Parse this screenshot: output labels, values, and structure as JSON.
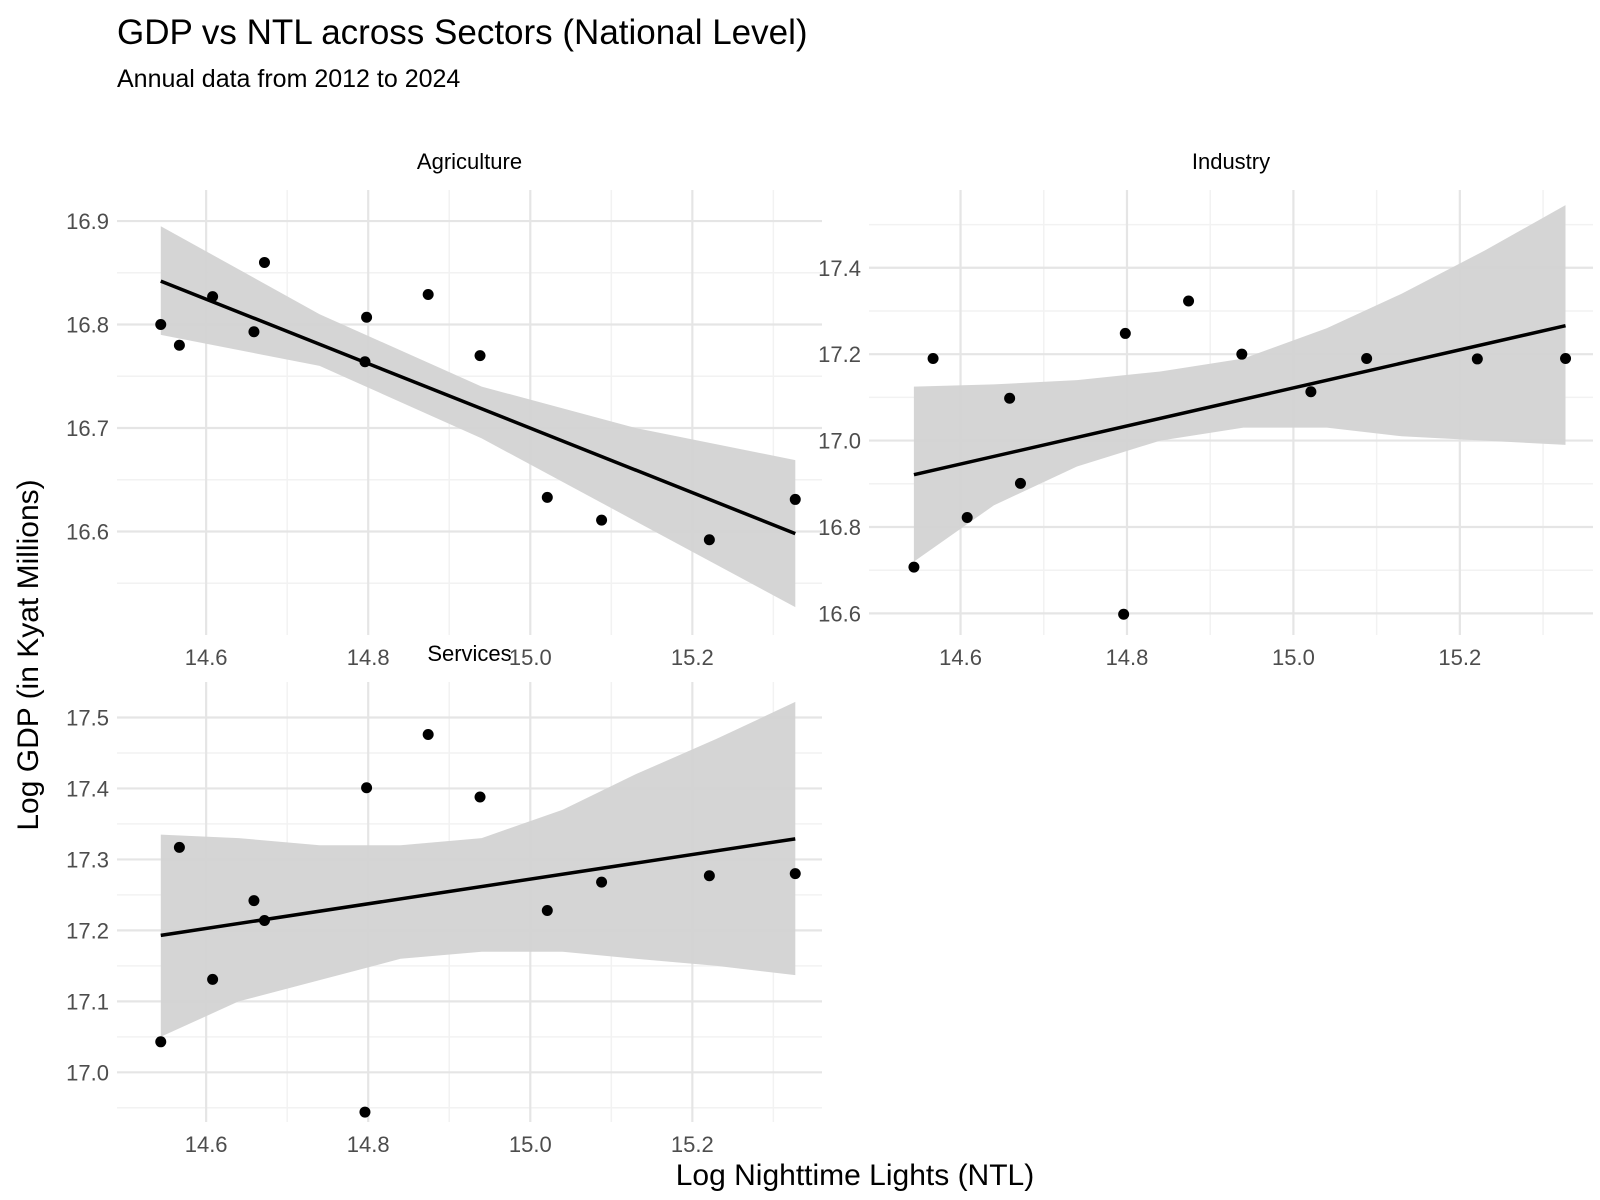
{
  "chart_data": {
    "type": "scatter",
    "title": "GDP vs NTL across Sectors (National Level)",
    "subtitle": "Annual data from 2012 to 2024",
    "xlabel": "Log Nighttime Lights (NTL)",
    "ylabel": "Log GDP (in Kyat Millions)",
    "grid": true,
    "colors": {
      "point": "#000000",
      "line": "#000000",
      "band": "#d3d3d3",
      "grid_major": "#e5e5e5",
      "grid_minor": "#f2f2f2"
    },
    "panels": [
      {
        "name": "Agriculture",
        "xlim": [
          14.49,
          15.36
        ],
        "ylim": [
          16.5,
          16.93
        ],
        "xticks": [
          14.6,
          14.8,
          15.0,
          15.2
        ],
        "xtick_labels": [
          "14.6",
          "14.8",
          "15.0",
          "15.2"
        ],
        "yticks": [
          16.6,
          16.7,
          16.8,
          16.9
        ],
        "ytick_labels": [
          "16.6",
          "16.7",
          "16.8",
          "16.9"
        ],
        "x": [
          14.544,
          14.567,
          14.608,
          14.659,
          14.672,
          14.798,
          14.796,
          14.874,
          14.938,
          15.021,
          15.088,
          15.221,
          15.327
        ],
        "y": [
          16.8,
          16.78,
          16.827,
          16.793,
          16.86,
          16.807,
          16.764,
          16.829,
          16.77,
          16.633,
          16.611,
          16.592,
          16.631
        ],
        "fit": {
          "x": [
            14.544,
            15.327
          ],
          "y": [
            16.842,
            16.598
          ]
        },
        "ci": {
          "x": [
            14.544,
            14.74,
            14.94,
            15.13,
            15.327
          ],
          "lower": [
            16.79,
            16.76,
            16.69,
            16.61,
            16.527
          ],
          "upper": [
            16.895,
            16.81,
            16.74,
            16.7,
            16.669
          ]
        }
      },
      {
        "name": "Industry",
        "xlim": [
          14.49,
          15.36
        ],
        "ylim": [
          16.55,
          17.58
        ],
        "xticks": [
          14.6,
          14.8,
          15.0,
          15.2
        ],
        "xtick_labels": [
          "14.6",
          "14.8",
          "15.0",
          "15.2"
        ],
        "yticks": [
          16.6,
          16.8,
          17.0,
          17.2,
          17.4
        ],
        "ytick_labels": [
          "16.6",
          "16.8",
          "17.0",
          "17.2",
          "17.4"
        ],
        "x": [
          14.544,
          14.567,
          14.608,
          14.659,
          14.672,
          14.798,
          14.796,
          14.874,
          14.938,
          15.021,
          15.088,
          15.221,
          15.327
        ],
        "y": [
          16.707,
          17.19,
          16.822,
          17.098,
          16.901,
          17.248,
          16.598,
          17.323,
          17.2,
          17.113,
          17.19,
          17.189,
          17.19
        ],
        "fit": {
          "x": [
            14.544,
            15.327
          ],
          "y": [
            16.921,
            17.266
          ]
        },
        "ci": {
          "x": [
            14.544,
            14.64,
            14.74,
            14.84,
            14.94,
            15.04,
            15.13,
            15.23,
            15.327
          ],
          "lower": [
            16.72,
            16.85,
            16.94,
            17.0,
            17.03,
            17.03,
            17.01,
            17.0,
            16.99
          ],
          "upper": [
            17.125,
            17.13,
            17.14,
            17.16,
            17.19,
            17.26,
            17.34,
            17.44,
            17.545
          ]
        }
      },
      {
        "name": "Services",
        "xlim": [
          14.49,
          15.36
        ],
        "ylim": [
          16.93,
          17.55
        ],
        "xticks": [
          14.6,
          14.8,
          15.0,
          15.2
        ],
        "xtick_labels": [
          "14.6",
          "14.8",
          "15.0",
          "15.2"
        ],
        "yticks": [
          17.0,
          17.1,
          17.2,
          17.3,
          17.4,
          17.5
        ],
        "ytick_labels": [
          "17.0",
          "17.1",
          "17.2",
          "17.3",
          "17.4",
          "17.5"
        ],
        "x": [
          14.544,
          14.567,
          14.608,
          14.659,
          14.672,
          14.798,
          14.796,
          14.874,
          14.938,
          15.021,
          15.088,
          15.221,
          15.327
        ],
        "y": [
          17.043,
          17.317,
          17.131,
          17.242,
          17.214,
          17.401,
          16.944,
          17.476,
          17.388,
          17.228,
          17.268,
          17.277,
          17.28
        ],
        "fit": {
          "x": [
            14.544,
            15.327
          ],
          "y": [
            17.193,
            17.329
          ]
        },
        "ci": {
          "x": [
            14.544,
            14.64,
            14.74,
            14.84,
            14.94,
            15.04,
            15.13,
            15.23,
            15.327
          ],
          "lower": [
            17.05,
            17.1,
            17.13,
            17.16,
            17.17,
            17.17,
            17.16,
            17.15,
            17.137
          ],
          "upper": [
            17.335,
            17.33,
            17.32,
            17.32,
            17.33,
            17.37,
            17.42,
            17.47,
            17.522
          ]
        }
      }
    ]
  }
}
